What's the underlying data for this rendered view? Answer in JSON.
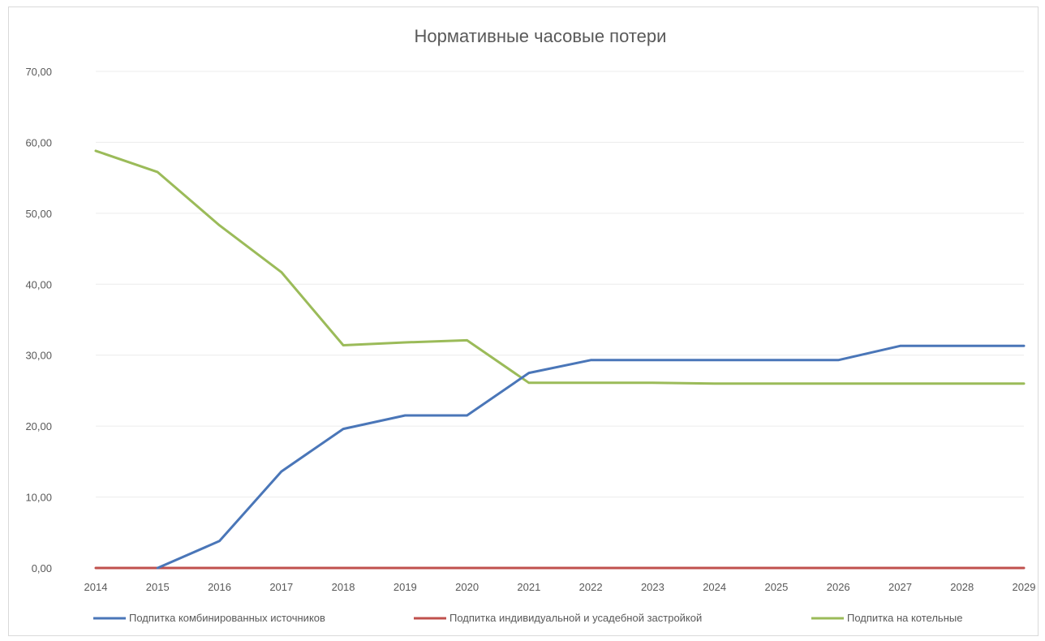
{
  "chart_data": {
    "type": "line",
    "title": "Нормативные часовые потери",
    "categories": [
      "2014",
      "2015",
      "2016",
      "2017",
      "2018",
      "2019",
      "2020",
      "2021",
      "2022",
      "2023",
      "2024",
      "2025",
      "2026",
      "2027",
      "2028",
      "2029"
    ],
    "ylim": [
      0,
      70
    ],
    "ytick_values": [
      0,
      10,
      20,
      30,
      40,
      50,
      60,
      70
    ],
    "ytick_labels": [
      "0,00",
      "10,00",
      "20,00",
      "30,00",
      "40,00",
      "50,00",
      "60,00",
      "70,00"
    ],
    "grid": true,
    "legend_position": "bottom",
    "series": [
      {
        "name": "Подпитка комбинированных источников",
        "color": "#4a76b8",
        "values": [
          null,
          0,
          3.8,
          13.6,
          19.6,
          21.5,
          21.5,
          27.5,
          29.3,
          29.3,
          29.3,
          29.3,
          29.3,
          31.3,
          31.3,
          31.3
        ]
      },
      {
        "name": "Подпитка индивидуальной и усадебной застройкой",
        "color": "#c0504d",
        "values": [
          0,
          0,
          0,
          0,
          0,
          0,
          0,
          0,
          0,
          0,
          0,
          0,
          0,
          0,
          0,
          0
        ]
      },
      {
        "name": "Подпитка на котельные",
        "color": "#9bbb59",
        "values": [
          58.8,
          55.8,
          48.3,
          41.7,
          31.4,
          31.8,
          32.1,
          26.1,
          26.1,
          26.1,
          26.0,
          26.0,
          26.0,
          26.0,
          26.0,
          26.0
        ]
      }
    ]
  }
}
